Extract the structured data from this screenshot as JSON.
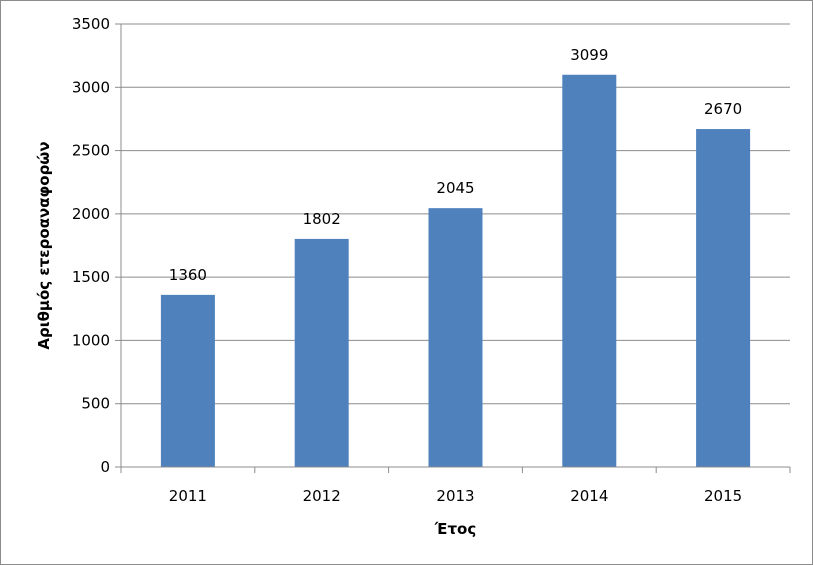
{
  "chart_data": {
    "type": "bar",
    "title": "",
    "xlabel": "Έτος",
    "ylabel": "Αριθμός ετεροαναφορών",
    "categories": [
      "2011",
      "2012",
      "2013",
      "2014",
      "2015"
    ],
    "values": [
      1360,
      1802,
      2045,
      3099,
      2670
    ],
    "ylim": [
      0,
      3500
    ],
    "yticks": [
      0,
      500,
      1000,
      1500,
      2000,
      2500,
      3000,
      3500
    ],
    "grid": true,
    "legend": "none",
    "bar_color": "#4f81bd",
    "grid_color": "#8c8c8c"
  }
}
